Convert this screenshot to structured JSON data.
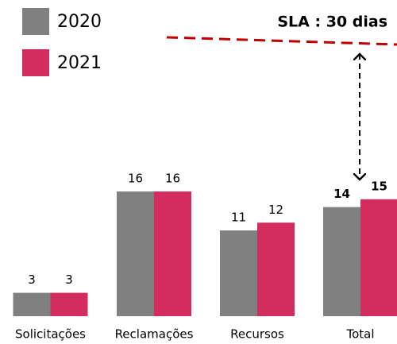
{
  "chart_data": {
    "type": "bar",
    "categories": [
      "Solicitações",
      "Reclamações",
      "Recursos",
      "Total"
    ],
    "series": [
      {
        "name": "2020",
        "color": "#808080",
        "values": [
          3,
          16,
          11,
          14
        ]
      },
      {
        "name": "2021",
        "color": "#d22d5e",
        "values": [
          3,
          16,
          12,
          15
        ]
      }
    ],
    "ylim": [
      0,
      16
    ],
    "annotation": "SLA : 30 dias"
  }
}
